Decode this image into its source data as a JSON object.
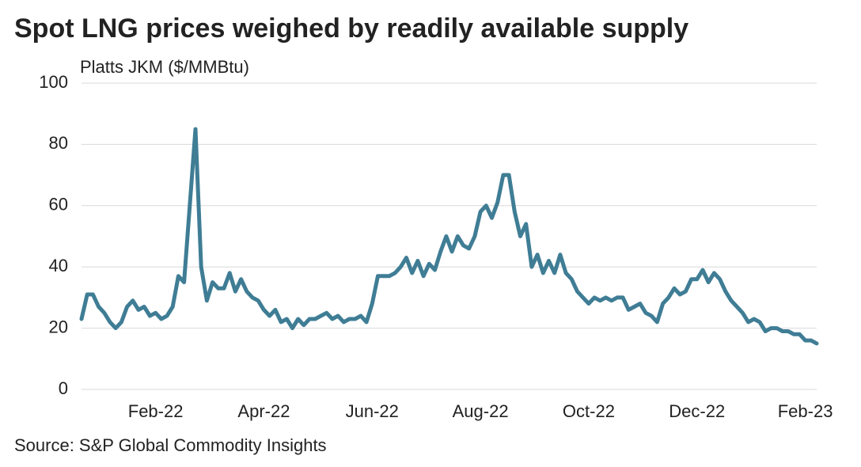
{
  "chart_data": {
    "type": "line",
    "title": "Spot LNG prices weighed by readily available supply",
    "y_label": "Platts JKM ($/MMBtu)",
    "source": "Source: S&P Global Commodity Insights",
    "categories": [
      null,
      null,
      null,
      null,
      null,
      null,
      null,
      null,
      null,
      null,
      null,
      null,
      null,
      "Feb-22",
      null,
      null,
      null,
      null,
      null,
      null,
      null,
      null,
      null,
      null,
      null,
      null,
      null,
      null,
      null,
      null,
      null,
      null,
      "Apr-22",
      null,
      null,
      null,
      null,
      null,
      null,
      null,
      null,
      null,
      null,
      null,
      null,
      null,
      null,
      null,
      null,
      null,
      null,
      "Jun-22",
      null,
      null,
      null,
      null,
      null,
      null,
      null,
      null,
      null,
      null,
      null,
      null,
      null,
      null,
      null,
      null,
      null,
      null,
      "Aug-22",
      null,
      null,
      null,
      null,
      null,
      null,
      null,
      null,
      null,
      null,
      null,
      null,
      null,
      null,
      null,
      null,
      null,
      null,
      "Oct-22",
      null,
      null,
      null,
      null,
      null,
      null,
      null,
      null,
      null,
      null,
      null,
      null,
      null,
      null,
      null,
      null,
      null,
      null,
      "Dec-22",
      null,
      null,
      null,
      null,
      null,
      null,
      null,
      null,
      null,
      null,
      null,
      null,
      null,
      null,
      null,
      null,
      null,
      null,
      "Feb-23",
      null,
      null
    ],
    "series": [
      {
        "color": "#3f7d95",
        "values": [
          23,
          31,
          31,
          27,
          25,
          22,
          20,
          22,
          27,
          29,
          26,
          27,
          24,
          25,
          23,
          24,
          27,
          37,
          35,
          60,
          85,
          40,
          29,
          35,
          33,
          33,
          38,
          32,
          36,
          32,
          30,
          29,
          26,
          24,
          26,
          22,
          23,
          20,
          23,
          21,
          23,
          23,
          24,
          25,
          23,
          24,
          22,
          23,
          23,
          24,
          22,
          28,
          37,
          37,
          37,
          38,
          40,
          43,
          38,
          42,
          37,
          41,
          39,
          45,
          50,
          45,
          50,
          47,
          46,
          50,
          58,
          60,
          56,
          61,
          70,
          70,
          58,
          50,
          54,
          40,
          44,
          38,
          42,
          38,
          44,
          38,
          36,
          32,
          30,
          28,
          30,
          29,
          30,
          29,
          30,
          30,
          26,
          27,
          28,
          25,
          24,
          22,
          28,
          30,
          33,
          31,
          32,
          36,
          36,
          39,
          35,
          38,
          36,
          32,
          29,
          27,
          25,
          22,
          23,
          22,
          19,
          20,
          20,
          19,
          19,
          18,
          18,
          16,
          16,
          15
        ]
      }
    ],
    "ylim": [
      0,
      100
    ],
    "yticks": [
      0,
      20,
      40,
      60,
      80,
      100
    ],
    "grid": true
  }
}
